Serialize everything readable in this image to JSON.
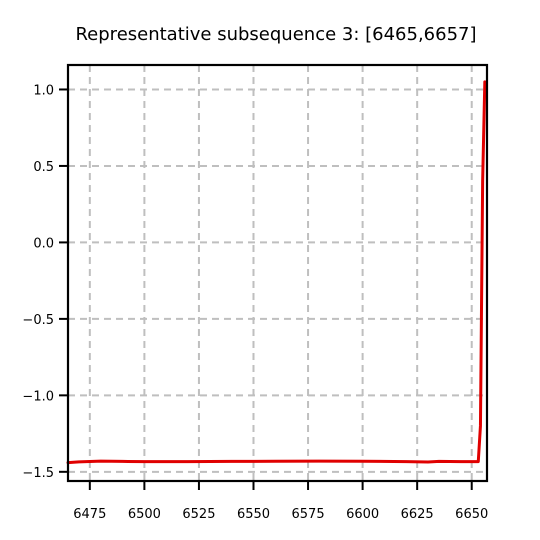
{
  "chart_data": {
    "type": "line",
    "title": "Representative subsequence 3: [6465,6657]",
    "xlabel": "",
    "ylabel": "",
    "xlim": [
      6465,
      6657
    ],
    "ylim": [
      -1.56,
      1.16
    ],
    "xticks": [
      6475,
      6500,
      6525,
      6550,
      6575,
      6600,
      6625,
      6650
    ],
    "xtick_labels": [
      "6475",
      "6500",
      "6525",
      "6550",
      "6575",
      "6600",
      "6625",
      "6650"
    ],
    "yticks": [
      1.0,
      0.5,
      0.0,
      -0.5,
      -1.0,
      -1.5
    ],
    "ytick_labels": [
      "1.0",
      "0.5",
      "0.0",
      "−0.5",
      "−1.0",
      "−1.5"
    ],
    "grid": true,
    "grid_style": "dashed",
    "legend": "none",
    "series": [
      {
        "color": "#e00000",
        "x": [
          6465,
          6470,
          6480,
          6490,
          6500,
          6520,
          6540,
          6560,
          6580,
          6600,
          6620,
          6630,
          6635,
          6645,
          6653,
          6654,
          6655,
          6656
        ],
        "y": [
          -1.44,
          -1.435,
          -1.43,
          -1.432,
          -1.433,
          -1.433,
          -1.432,
          -1.431,
          -1.43,
          -1.431,
          -1.433,
          -1.436,
          -1.432,
          -1.433,
          -1.433,
          -1.2,
          0.4,
          1.05
        ]
      }
    ]
  }
}
